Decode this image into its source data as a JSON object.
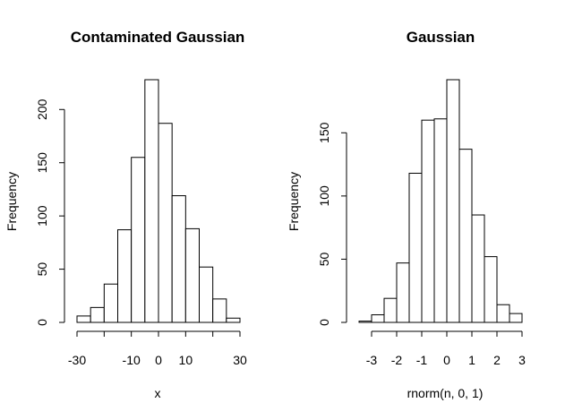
{
  "chart_data": [
    {
      "type": "bar",
      "title": "Contaminated Gaussian",
      "xlabel": "x",
      "ylabel": "Frequency",
      "bin_edges": [
        -30,
        -25,
        -20,
        -15,
        -10,
        -5,
        0,
        5,
        10,
        15,
        20,
        25,
        30
      ],
      "values": [
        6,
        14,
        36,
        87,
        155,
        228,
        187,
        119,
        88,
        52,
        22,
        4
      ],
      "xlim": [
        -30,
        30
      ],
      "ylim": [
        0,
        228
      ],
      "x_ticks": [
        -30,
        -20,
        -10,
        0,
        10,
        20,
        30
      ],
      "x_tick_labels": [
        "-30",
        "",
        "-10",
        "0",
        "10",
        "",
        "30"
      ],
      "y_ticks": [
        0,
        50,
        100,
        150,
        200
      ],
      "y_tick_labels": [
        "0",
        "50",
        "100",
        "150",
        "200"
      ],
      "grid": false
    },
    {
      "type": "bar",
      "title": "Gaussian",
      "xlabel": "rnorm(n, 0, 1)",
      "ylabel": "Frequency",
      "bin_edges": [
        -3.5,
        -3,
        -2.5,
        -2,
        -1.5,
        -1,
        -0.5,
        0,
        0.5,
        1,
        1.5,
        2,
        2.5,
        3
      ],
      "values": [
        1,
        6,
        19,
        47,
        118,
        160,
        161,
        192,
        137,
        85,
        52,
        14,
        7
      ],
      "xlim": [
        -3,
        3
      ],
      "ylim": [
        0,
        192
      ],
      "x_ticks": [
        -3,
        -2,
        -1,
        0,
        1,
        2,
        3
      ],
      "x_tick_labels": [
        "-3",
        "-2",
        "-1",
        "0",
        "1",
        "2",
        "3"
      ],
      "y_ticks": [
        0,
        50,
        100,
        150
      ],
      "y_tick_labels": [
        "0",
        "50",
        "100",
        "150"
      ],
      "grid": false
    }
  ]
}
